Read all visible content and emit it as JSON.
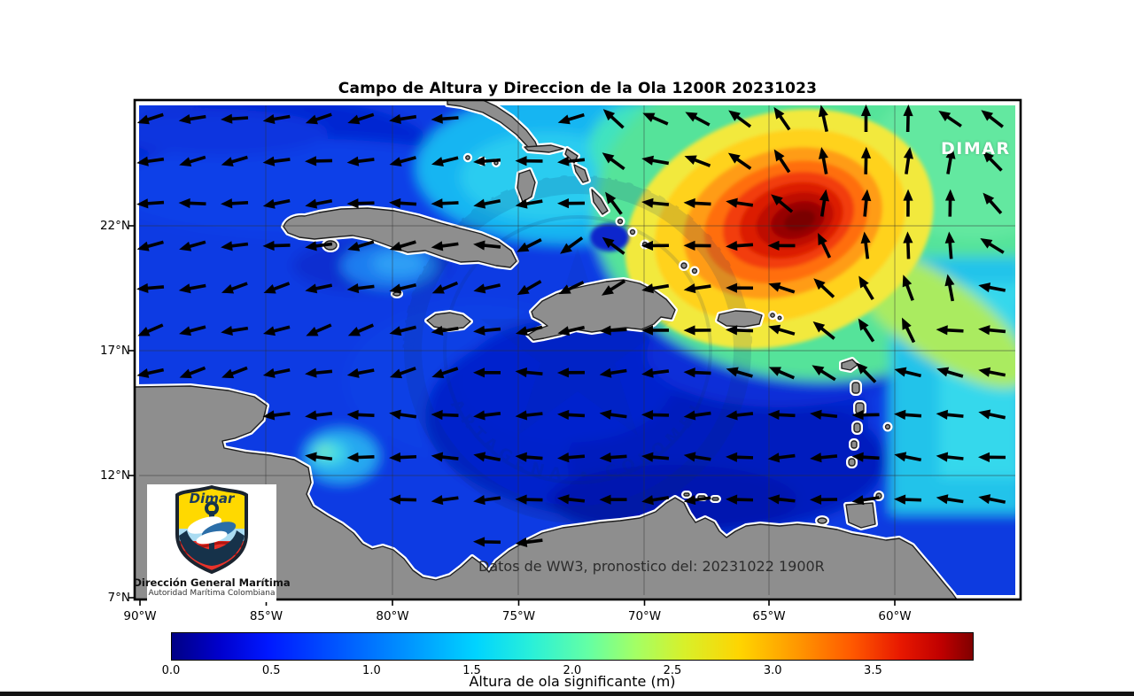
{
  "page": {
    "title": "Campo de Altura y Direccion de la Ola 1200R 20231023"
  },
  "map": {
    "overlay_brand": "DIMAR",
    "data_note": "Datos de WW3, pronostico del: 20231022 1900R",
    "watermark": {
      "ring_top": "CENTRO DE INVESTIGACIONES OCEANOGRAFICAS E HIDROGRAFICAS",
      "ring_bottom": "CARTAGENA • COLOMBIA"
    }
  },
  "axes": {
    "lat_ticks": [
      "22°N",
      "17°N",
      "12°N",
      "7°N"
    ],
    "lon_ticks": [
      "90°W",
      "85°W",
      "80°W",
      "75°W",
      "70°W",
      "65°W",
      "60°W"
    ]
  },
  "colorbar": {
    "ticks": [
      "0.0",
      "0.5",
      "1.0",
      "1.5",
      "2.0",
      "2.5",
      "3.0",
      "3.5"
    ],
    "label": "Altura de ola significante (m)",
    "min_color": "#000080",
    "max_color": "#800000"
  },
  "logo": {
    "shield_word": "Dimar",
    "org_name": "Dirección General Marítima",
    "org_subtitle": "Autoridad Marítima Colombiana"
  },
  "colors": {
    "ocean_calm": "#0220c9",
    "ocean_mid": "#0b3be3",
    "cyan_1m": "#2accf0",
    "green_2m": "#55e39a",
    "yellow_2_5m": "#f2e93c",
    "orange_3m": "#ff9c14",
    "red_3_5m": "#dc1e06",
    "dark_red_4m": "#7a0000",
    "land": "#8e8e8e",
    "arrow": "#000000"
  }
}
